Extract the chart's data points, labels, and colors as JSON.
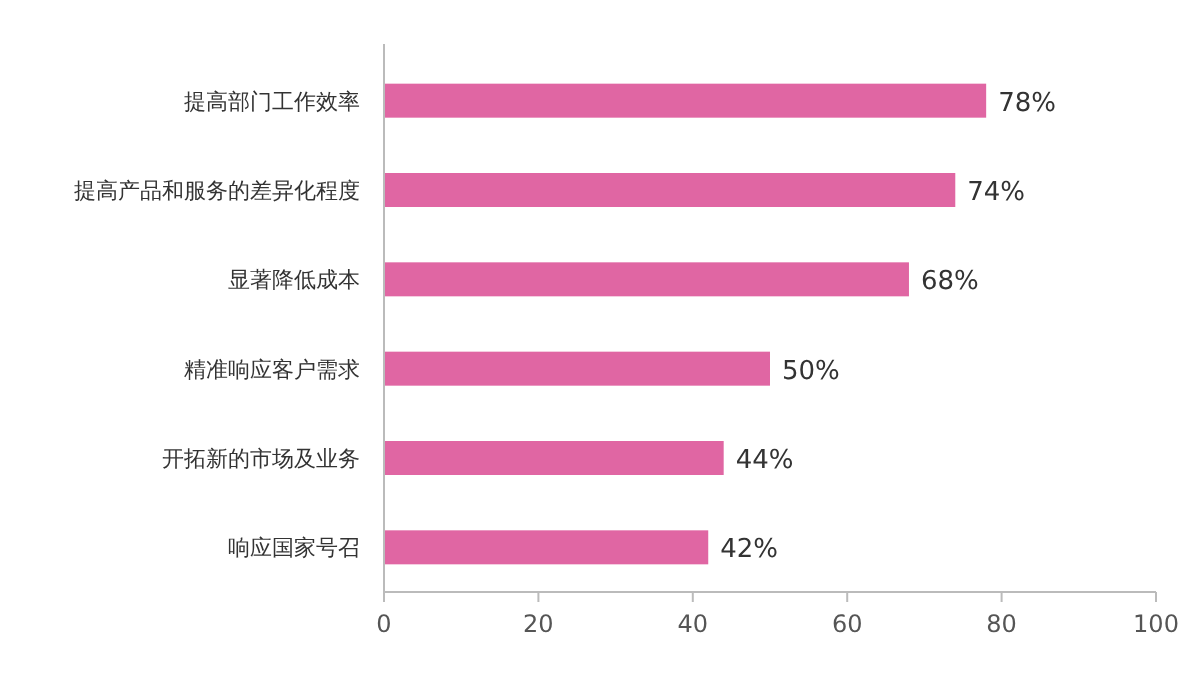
{
  "chart_data": {
    "type": "bar",
    "orientation": "horizontal",
    "categories": [
      "提高部门工作效率",
      "提高产品和服务的差异化程度",
      "显著降低成本",
      "精准响应客户需求",
      "开拓新的市场及业务",
      "响应国家号召"
    ],
    "values": [
      78,
      74,
      68,
      50,
      44,
      42
    ],
    "value_labels": [
      "78%",
      "74%",
      "68%",
      "50%",
      "44%",
      "42%"
    ],
    "color": "#e066a3",
    "xlim": [
      0,
      100
    ],
    "xticks": [
      0,
      20,
      40,
      60,
      80,
      100
    ]
  }
}
